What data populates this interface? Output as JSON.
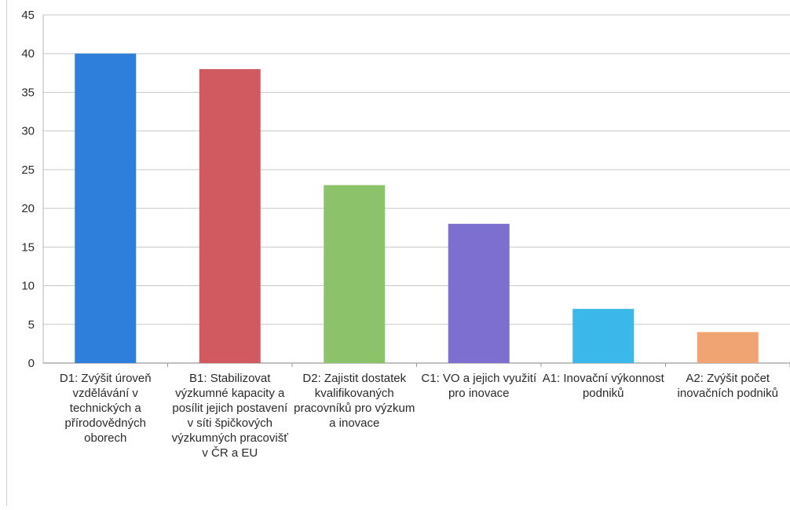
{
  "chart_data": {
    "type": "bar",
    "title": "",
    "xlabel": "",
    "ylabel": "",
    "ylim": [
      0,
      45
    ],
    "yticks": [
      0,
      5,
      10,
      15,
      20,
      25,
      30,
      35,
      40,
      45
    ],
    "grid": true,
    "legend": "none",
    "categories": [
      "D1: Zvýšit úroveň vzdělávání v technických a přírodovědných oborech",
      "B1: Stabilizovat výzkumné kapacity a posílit jejich postavení v síti špičkových výzkumných pracovišť v ČR a EU",
      "D2: Zajistit dostatek kvalifikovaných pracovníků pro výzkum a inovace",
      "C1: VO a jejich využití pro inovace",
      "A1: Inovační výkonnost podniků",
      "A2: Zvýšit počet inovačních podniků"
    ],
    "values": [
      40,
      38,
      23,
      18,
      7,
      4
    ],
    "colors": [
      "#2e7fdc",
      "#d05a5f",
      "#8cc36a",
      "#7c6fcf",
      "#3bb8ea",
      "#f0a474"
    ]
  }
}
